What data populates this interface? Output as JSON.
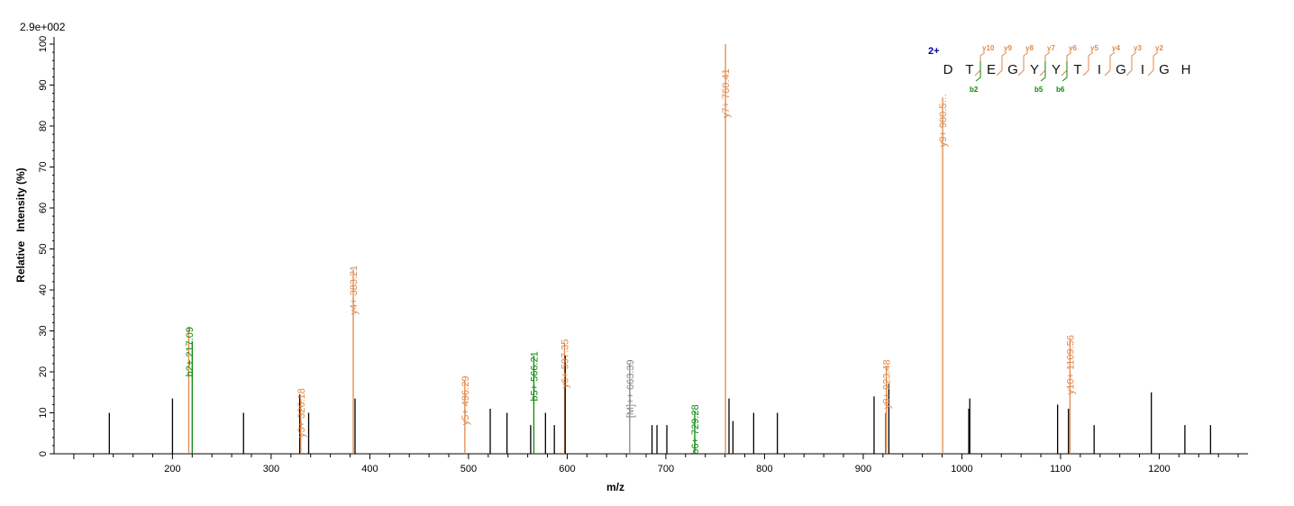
{
  "scale_label": "2.9e+002",
  "chart_data": {
    "type": "bar",
    "xlabel": "m/z",
    "ylabel": "Relative   Intensity (%)",
    "xlim": [
      80,
      1290
    ],
    "ylim": [
      0,
      100
    ],
    "x_ticks": [
      200,
      300,
      400,
      500,
      600,
      700,
      800,
      900,
      1000,
      1100,
      1200
    ],
    "y_ticks": [
      0,
      10,
      20,
      30,
      40,
      50,
      60,
      70,
      80,
      90,
      100
    ],
    "colors": {
      "y": "#e0884a",
      "b": "#0a8a0a",
      "precursor": "#888888",
      "other": "#000000",
      "charge": "#000099"
    },
    "peaks": [
      {
        "x": 136,
        "y": 10
      },
      {
        "x": 200,
        "y": 13.5
      },
      {
        "x": 216.5,
        "y": 31,
        "type": "y"
      },
      {
        "x": 220,
        "y": 27.5,
        "type": "b"
      },
      {
        "x": 272,
        "y": 10
      },
      {
        "x": 329,
        "y": 14.5
      },
      {
        "x": 330,
        "y": 13.5,
        "type": "y"
      },
      {
        "x": 338,
        "y": 10
      },
      {
        "x": 383.21,
        "y": 45,
        "type": "y"
      },
      {
        "x": 385,
        "y": 13.5
      },
      {
        "x": 496.29,
        "y": 18,
        "type": "y"
      },
      {
        "x": 522,
        "y": 11
      },
      {
        "x": 539,
        "y": 10
      },
      {
        "x": 563,
        "y": 7
      },
      {
        "x": 566.21,
        "y": 24,
        "type": "b"
      },
      {
        "x": 578,
        "y": 10
      },
      {
        "x": 587,
        "y": 7
      },
      {
        "x": 597.35,
        "y": 27,
        "type": "y"
      },
      {
        "x": 598,
        "y": 24
      },
      {
        "x": 663.39,
        "y": 22,
        "type": "precursor"
      },
      {
        "x": 686,
        "y": 7
      },
      {
        "x": 691,
        "y": 7
      },
      {
        "x": 701,
        "y": 7
      },
      {
        "x": 729.28,
        "y": 10.5,
        "type": "b"
      },
      {
        "x": 760.41,
        "y": 100,
        "type": "y"
      },
      {
        "x": 764,
        "y": 13.5
      },
      {
        "x": 768,
        "y": 8
      },
      {
        "x": 789,
        "y": 10
      },
      {
        "x": 813,
        "y": 10
      },
      {
        "x": 911,
        "y": 14
      },
      {
        "x": 923,
        "y": 10
      },
      {
        "x": 923.48,
        "y": 21.5,
        "type": "y"
      },
      {
        "x": 926,
        "y": 17
      },
      {
        "x": 980.5,
        "y": 87,
        "type": "y"
      },
      {
        "x": 1007,
        "y": 11
      },
      {
        "x": 1008,
        "y": 13.5
      },
      {
        "x": 1097,
        "y": 12
      },
      {
        "x": 1108,
        "y": 11
      },
      {
        "x": 1109.56,
        "y": 28,
        "type": "y"
      },
      {
        "x": 1134,
        "y": 7
      },
      {
        "x": 1192,
        "y": 15
      },
      {
        "x": 1226,
        "y": 7
      },
      {
        "x": 1252,
        "y": 7
      }
    ],
    "annotations": [
      {
        "x": 217.09,
        "y": 31,
        "text": "b2+ 217.09",
        "type": "b"
      },
      {
        "x": 330,
        "y": 16,
        "text": "y3+ 326.18",
        "type": "y"
      },
      {
        "x": 383.21,
        "y": 46,
        "text": "y4+ 383.21",
        "type": "y"
      },
      {
        "x": 496.29,
        "y": 19,
        "text": "y5+ 496.29",
        "type": "y"
      },
      {
        "x": 566.21,
        "y": 25,
        "text": "b5+ 566.21",
        "type": "b"
      },
      {
        "x": 597.35,
        "y": 28,
        "text": "y6+ 597.35",
        "type": "y"
      },
      {
        "x": 663.39,
        "y": 23,
        "text": "[M]++ 663.39",
        "type": "precursor"
      },
      {
        "x": 729.28,
        "y": 12,
        "text": "b6+ 729.28",
        "type": "b"
      },
      {
        "x": 760.41,
        "y": 94,
        "text": "y7+ 760.41",
        "type": "y"
      },
      {
        "x": 923.48,
        "y": 23,
        "text": "y8+ 923.48",
        "type": "y"
      },
      {
        "x": 980.5,
        "y": 88,
        "text": "y9+ 980.5…",
        "type": "y"
      },
      {
        "x": 1109.56,
        "y": 29,
        "text": "y10+ 1109.56",
        "type": "y"
      }
    ],
    "sequence": {
      "charge": "2+",
      "residues": [
        "D",
        "T",
        "E",
        "G",
        "Y",
        "Y",
        "T",
        "I",
        "G",
        "I",
        "G",
        "H"
      ],
      "y_ions": [
        {
          "after": 2,
          "label": "y10"
        },
        {
          "after": 3,
          "label": "y9"
        },
        {
          "after": 4,
          "label": "y8"
        },
        {
          "after": 5,
          "label": "y7"
        },
        {
          "after": 6,
          "label": "y6"
        },
        {
          "after": 7,
          "label": "y5"
        },
        {
          "after": 8,
          "label": "y4"
        },
        {
          "after": 9,
          "label": "y3"
        },
        {
          "after": 10,
          "label": "y2"
        }
      ],
      "b_ions": [
        {
          "after": 2,
          "label": "b2"
        },
        {
          "after": 5,
          "label": "b5"
        },
        {
          "after": 6,
          "label": "b6"
        }
      ]
    }
  }
}
